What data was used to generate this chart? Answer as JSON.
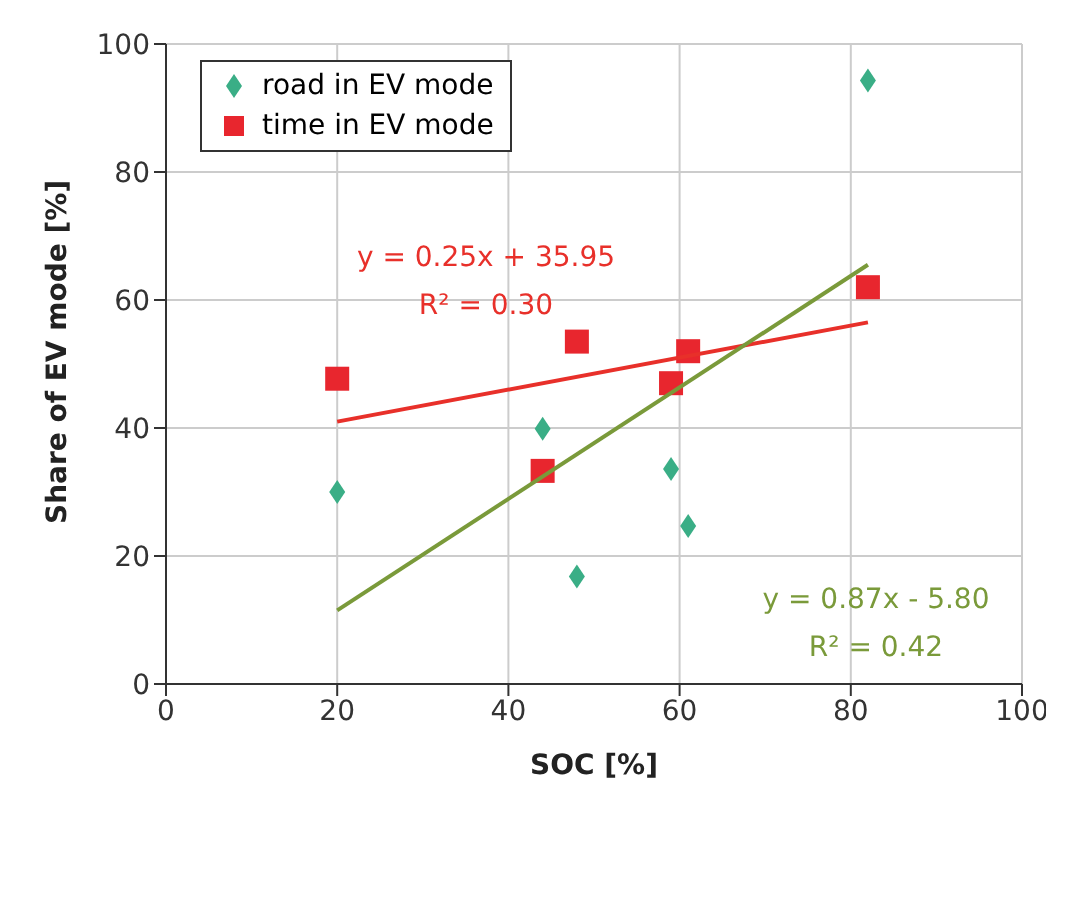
{
  "chart_data": {
    "type": "scatter",
    "xlabel": "SOC [%]",
    "ylabel": "Share of EV mode [%]",
    "xlim": [
      0,
      100
    ],
    "xticks": [
      0,
      20,
      40,
      60,
      80,
      100
    ],
    "ylim": [
      0,
      100
    ],
    "yticks": [
      0,
      20,
      40,
      60,
      80,
      100
    ],
    "grid": true,
    "legend": "top left",
    "series": [
      {
        "name": "road in EV mode",
        "color": "#3aae86",
        "marker": "diamond",
        "x": [
          20,
          44,
          48,
          59,
          61,
          82
        ],
        "values": [
          30,
          39.9,
          16.8,
          33.6,
          24.7,
          94.3
        ]
      },
      {
        "name": "time in EV mode",
        "color": "#e8262e",
        "marker": "square",
        "x": [
          20,
          44,
          48,
          59,
          61,
          82
        ],
        "values": [
          47.7,
          33.3,
          53.5,
          47,
          52,
          62
        ]
      },
      {
        "type": "line",
        "color": "#e8302a",
        "marker": "none",
        "x": [
          20,
          82
        ],
        "values": [
          41,
          56.5
        ]
      },
      {
        "type": "line",
        "color": "#7a9a3a",
        "marker": "none",
        "x": [
          20,
          82
        ],
        "values": [
          11.5,
          65.5
        ]
      }
    ],
    "annotations": [
      "y = 0.25x + 35.95",
      "R² = 0.30",
      "y = 0.87x - 5.80",
      "R² = 0.42"
    ]
  }
}
